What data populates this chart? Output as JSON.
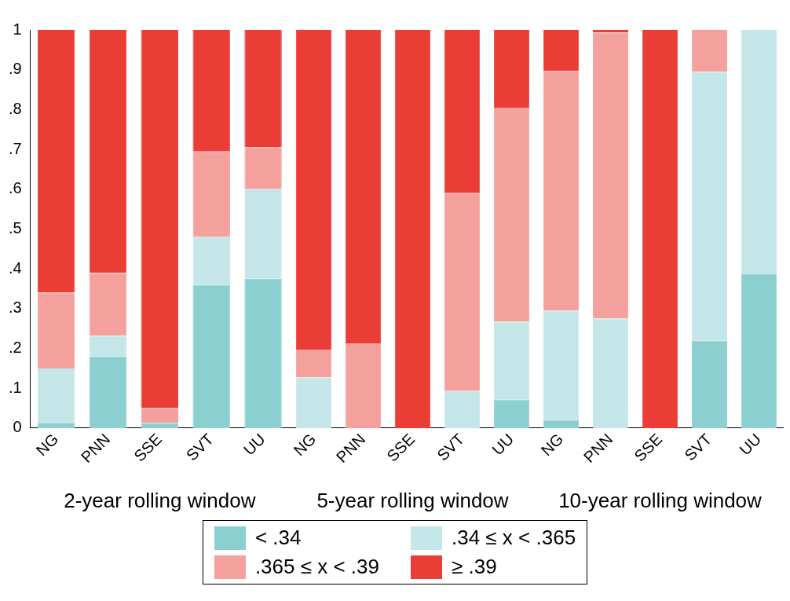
{
  "chart_data": [
    {
      "type": "bar",
      "stacked": true,
      "xlabel": "2-year rolling window",
      "categories": [
        "NG",
        "PNN",
        "SSE",
        "SVT",
        "UU"
      ],
      "ylim": [
        0,
        1
      ],
      "yticks": [
        0,
        {
          "value": 0.1,
          "label": ".1"
        },
        {
          "value": 0.2,
          "label": ".2"
        },
        {
          "value": 0.3,
          "label": ".3"
        },
        {
          "value": 0.4,
          "label": ".4"
        },
        {
          "value": 0.5,
          "label": ".5"
        },
        {
          "value": 0.6,
          "label": ".6"
        },
        {
          "value": 0.7,
          "label": ".7"
        },
        {
          "value": 0.8,
          "label": ".8"
        },
        {
          "value": 0.9,
          "label": ".9"
        },
        1
      ],
      "legend": "bottom",
      "series": [
        {
          "name": "< .34",
          "color": "#8ccfd0",
          "values": [
            0.012,
            0.18,
            0.013,
            0.36,
            0.375
          ]
        },
        {
          "name": ".34 ≤ x < .365",
          "color": "#c5e6e8",
          "values": [
            0.138,
            0.052,
            0,
            0.12,
            0.225
          ]
        },
        {
          "name": ".365 ≤ x < .39",
          "color": "#f4a09c",
          "values": [
            0.19,
            0.158,
            0.037,
            0.215,
            0.105
          ]
        },
        {
          "name": "≥ .39",
          "color": "#ea3d35",
          "values": [
            0.66,
            0.61,
            0.95,
            0.305,
            0.295
          ]
        }
      ]
    },
    {
      "type": "bar",
      "stacked": true,
      "xlabel": "5-year rolling window",
      "categories": [
        "NG",
        "PNN",
        "SSE",
        "SVT",
        "UU"
      ],
      "ylim": [
        0,
        1
      ],
      "tick_labels": "x",
      "series": [
        {
          "color": "#8ccfd0",
          "values": [
            0,
            0,
            0,
            0,
            0.072
          ]
        },
        {
          "color": "#c5e6e8",
          "values": [
            0.127,
            0,
            0,
            0.093,
            0.195
          ]
        },
        {
          "color": "#f4a09c",
          "values": [
            0.07,
            0.213,
            0,
            0.497,
            0.536
          ]
        },
        {
          "color": "#ea3d35",
          "values": [
            0.803,
            0.787,
            1,
            0.41,
            0.197
          ]
        }
      ]
    },
    {
      "type": "bar",
      "stacked": true,
      "xlabel": "10-year rolling window",
      "categories": [
        "NG",
        "PNN",
        "SSE",
        "SVT",
        "UU"
      ],
      "ylim": [
        0,
        1
      ],
      "tick_labels": "x",
      "series": [
        {
          "color": "#8ccfd0",
          "values": [
            0.02,
            0,
            0,
            0.22,
            0.388
          ]
        },
        {
          "color": "#c5e6e8",
          "values": [
            0.275,
            0.275,
            0,
            0.675,
            0.612
          ]
        },
        {
          "color": "#f4a09c",
          "values": [
            0.602,
            0.718,
            0,
            0.105,
            0
          ]
        },
        {
          "color": "#ea3d35",
          "values": [
            0.103,
            0.007,
            1,
            0,
            0
          ]
        }
      ]
    }
  ]
}
